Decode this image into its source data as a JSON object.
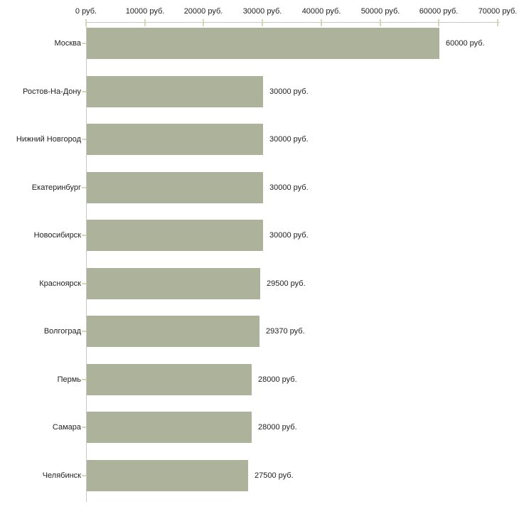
{
  "chart_data": {
    "type": "bar",
    "orientation": "horizontal",
    "title": "",
    "xlabel": "",
    "ylabel": "",
    "xlim": [
      0,
      70000
    ],
    "grid": false,
    "legend": "none",
    "unit": "руб.",
    "categories": [
      "Москва",
      "Ростов-На-Дону",
      "Нижний Новгород",
      "Екатеринбург",
      "Новосибирск",
      "Красноярск",
      "Волгоград",
      "Пермь",
      "Самара",
      "Челябинск"
    ],
    "values": [
      60000,
      30000,
      30000,
      30000,
      30000,
      29500,
      29370,
      28000,
      28000,
      27500
    ],
    "value_labels": [
      "60000 руб.",
      "30000 руб.",
      "30000 руб.",
      "30000 руб.",
      "30000 руб.",
      "29500 руб.",
      "29370 руб.",
      "28000 руб.",
      "28000 руб.",
      "27500 руб."
    ],
    "x_ticks": [
      0,
      10000,
      20000,
      30000,
      40000,
      50000,
      60000,
      70000
    ],
    "x_tick_labels": [
      "0 руб.",
      "10000 руб.",
      "20000 руб.",
      "30000 руб.",
      "40000 руб.",
      "50000 руб.",
      "60000 руб.",
      "70000 руб."
    ],
    "colors": {
      "bar": "#adb39a",
      "axis_line": "#c8c8c8",
      "tick": "#d8d8b0",
      "text": "#222222",
      "background": "#ffffff"
    }
  }
}
